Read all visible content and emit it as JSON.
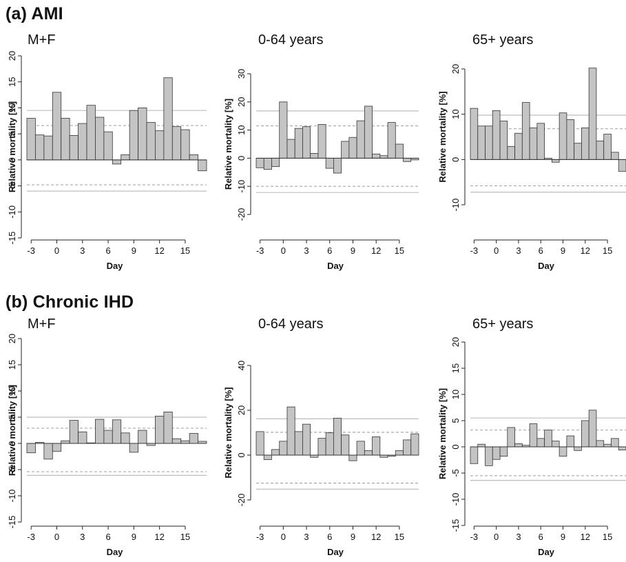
{
  "section_a_title": "(a) AMI",
  "section_b_title": "(b) Chronic IHD",
  "colors": {
    "bar_fill": "#c4c4c4",
    "bar_stroke": "#333333",
    "solid_ref": "#bdbdbd",
    "dashed_ref": "#a9a9a9"
  },
  "chart_data": [
    {
      "type": "bar",
      "section": "(a) AMI",
      "title": "M+F",
      "xlabel": "Day",
      "ylabel": "Relative mortality [%]",
      "ylim": [
        -15,
        20
      ],
      "yticks": [
        -15,
        -10,
        -5,
        0,
        5,
        10,
        15,
        20
      ],
      "xticks": [
        -3,
        0,
        3,
        6,
        9,
        12,
        15
      ],
      "x": [
        -3,
        -2,
        -1,
        0,
        1,
        2,
        3,
        4,
        5,
        6,
        7,
        8,
        9,
        10,
        11,
        12,
        13,
        14,
        15,
        16,
        17
      ],
      "values": [
        8,
        4.8,
        4.6,
        13,
        8,
        4.7,
        7,
        10.5,
        8.2,
        5.4,
        -0.8,
        1,
        9.5,
        10,
        7.2,
        5.6,
        15.8,
        6.4,
        5.8,
        1,
        -2.1
      ],
      "reference_lines": {
        "solid": [
          9.5,
          -6
        ],
        "dashed": [
          6.6,
          -4.8
        ]
      }
    },
    {
      "type": "bar",
      "section": "(a) AMI",
      "title": "0-64 years",
      "xlabel": "Day",
      "ylabel": "Relative mortality [%]",
      "ylim": [
        -20,
        30
      ],
      "yticks": [
        -20,
        -10,
        0,
        10,
        20,
        30
      ],
      "xticks": [
        -3,
        0,
        3,
        6,
        9,
        12,
        15
      ],
      "x": [
        -3,
        -2,
        -1,
        0,
        1,
        2,
        3,
        4,
        5,
        6,
        7,
        8,
        9,
        10,
        11,
        12,
        13,
        14,
        15,
        16,
        17
      ],
      "values": [
        -3.4,
        -4,
        -3,
        20,
        6.7,
        10.6,
        11.2,
        1.7,
        12,
        -3.6,
        -5.3,
        6,
        7.4,
        13.3,
        18.5,
        1.5,
        0.9,
        12.7,
        5,
        -1.2,
        -0.6
      ],
      "reference_lines": {
        "solid": [
          16.8,
          -12.2
        ],
        "dashed": [
          11.5,
          -10
        ]
      }
    },
    {
      "type": "bar",
      "section": "(a) AMI",
      "title": "65+ years",
      "xlabel": "Day",
      "ylabel": "Relative mortality [%]",
      "ylim": [
        -10,
        20
      ],
      "yticks": [
        -10,
        0,
        10,
        20
      ],
      "xticks": [
        -3,
        0,
        3,
        6,
        9,
        12,
        15
      ],
      "x": [
        -3,
        -2,
        -1,
        0,
        1,
        2,
        3,
        4,
        5,
        6,
        7,
        8,
        9,
        10,
        11,
        12,
        13,
        14,
        15,
        16,
        17
      ],
      "values": [
        11.3,
        7.4,
        7.4,
        10.8,
        8.5,
        2.9,
        5.8,
        12.6,
        7,
        8,
        0.3,
        -0.6,
        10.3,
        8.8,
        3.6,
        7,
        20.2,
        4.1,
        5.6,
        1.6,
        -2.6
      ],
      "reference_lines": {
        "solid": [
          9.8,
          -7.2
        ],
        "dashed": [
          6.8,
          -5.8
        ]
      }
    },
    {
      "type": "bar",
      "section": "(b) Chronic IHD",
      "title": "M+F",
      "xlabel": "Day",
      "ylabel": "Relative mortality [%]",
      "ylim": [
        -15,
        20
      ],
      "yticks": [
        -15,
        -10,
        -5,
        0,
        5,
        10,
        15,
        20
      ],
      "xticks": [
        -3,
        0,
        3,
        6,
        9,
        12,
        15
      ],
      "x": [
        -3,
        -2,
        -1,
        0,
        1,
        2,
        3,
        4,
        5,
        6,
        7,
        8,
        9,
        10,
        11,
        12,
        13,
        14,
        15,
        16,
        17
      ],
      "values": [
        -1.8,
        0.2,
        -3,
        -1.5,
        0.5,
        4.4,
        2.2,
        0.1,
        4.6,
        2.5,
        4.5,
        2,
        -1.7,
        2.5,
        -0.4,
        5.2,
        6,
        0.9,
        0.5,
        1.9,
        0.4
      ],
      "reference_lines": {
        "solid": [
          5,
          -6.1
        ],
        "dashed": [
          2.9,
          -5.4
        ]
      }
    },
    {
      "type": "bar",
      "section": "(b) Chronic IHD",
      "title": "0-64 years",
      "xlabel": "Day",
      "ylabel": "Relative mortality [%]",
      "ylim": [
        -20,
        40
      ],
      "yticks": [
        -20,
        0,
        20,
        40
      ],
      "xticks": [
        -3,
        0,
        3,
        6,
        9,
        12,
        15
      ],
      "x": [
        -3,
        -2,
        -1,
        0,
        1,
        2,
        3,
        4,
        5,
        6,
        7,
        8,
        9,
        10,
        11,
        12,
        13,
        14,
        15,
        16,
        17
      ],
      "values": [
        10.5,
        -2,
        2.5,
        6.2,
        21.5,
        10.5,
        13.8,
        -1,
        7.5,
        10,
        16.5,
        9,
        -2.5,
        6.2,
        2,
        8.2,
        -1,
        -0.5,
        2,
        6.8,
        9.5
      ],
      "reference_lines": {
        "solid": [
          16.2,
          -15.2
        ],
        "dashed": [
          10.2,
          -12.5
        ]
      }
    },
    {
      "type": "bar",
      "section": "(b) Chronic IHD",
      "title": "65+ years",
      "xlabel": "Day",
      "ylabel": "Relative mortality [%]",
      "ylim": [
        -15,
        20
      ],
      "yticks": [
        -15,
        -10,
        -5,
        0,
        5,
        10,
        15,
        20
      ],
      "xticks": [
        -3,
        0,
        3,
        6,
        9,
        12,
        15
      ],
      "x": [
        -3,
        -2,
        -1,
        0,
        1,
        2,
        3,
        4,
        5,
        6,
        7,
        8,
        9,
        10,
        11,
        12,
        13,
        14,
        15,
        16,
        17
      ],
      "values": [
        -3.2,
        0.5,
        -3.6,
        -2.4,
        -1.8,
        3.7,
        0.6,
        0.3,
        4.4,
        1.6,
        3.2,
        1.1,
        -1.8,
        2.1,
        -0.7,
        5,
        7,
        1.2,
        0.5,
        1.6,
        -0.6
      ],
      "reference_lines": {
        "solid": [
          5.5,
          -6.4
        ],
        "dashed": [
          3.2,
          -5.5
        ]
      }
    }
  ]
}
